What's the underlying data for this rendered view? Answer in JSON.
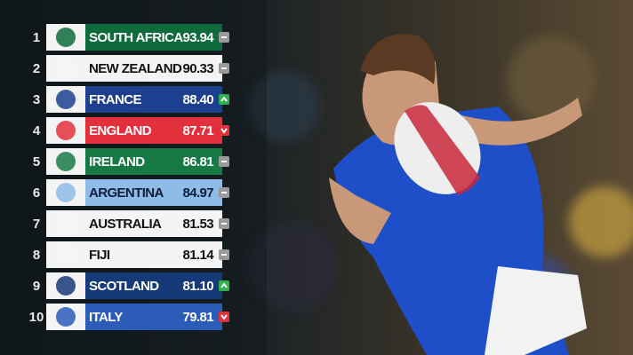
{
  "rankings": {
    "rows": [
      {
        "rank": "1",
        "team": "SOUTH AFRICA",
        "points": "93.94",
        "movement": "same",
        "color": "#0f6b3c",
        "text_color": "#ffffff"
      },
      {
        "rank": "2",
        "team": "NEW ZEALAND",
        "points": "90.33",
        "movement": "same",
        "color": "#f4f4f4",
        "text_color": "#111111"
      },
      {
        "rank": "3",
        "team": "FRANCE",
        "points": "88.40",
        "movement": "up",
        "color": "#1c3f8f",
        "text_color": "#ffffff"
      },
      {
        "rank": "4",
        "team": "ENGLAND",
        "points": "87.71",
        "movement": "down",
        "color": "#e2313c",
        "text_color": "#ffffff"
      },
      {
        "rank": "5",
        "team": "IRELAND",
        "points": "86.81",
        "movement": "same",
        "color": "#177a45",
        "text_color": "#ffffff"
      },
      {
        "rank": "6",
        "team": "ARGENTINA",
        "points": "84.97",
        "movement": "same",
        "color": "#8fbbe8",
        "text_color": "#0e1e3a"
      },
      {
        "rank": "7",
        "team": "AUSTRALIA",
        "points": "81.53",
        "movement": "same",
        "color": "#f4f4f4",
        "text_color": "#111111"
      },
      {
        "rank": "8",
        "team": "FIJI",
        "points": "81.14",
        "movement": "same",
        "color": "#f4f4f4",
        "text_color": "#111111"
      },
      {
        "rank": "9",
        "team": "SCOTLAND",
        "points": "81.10",
        "movement": "up",
        "color": "#163a78",
        "text_color": "#ffffff"
      },
      {
        "rank": "10",
        "team": "ITALY",
        "points": "79.81",
        "movement": "down",
        "color": "#2a5cb8",
        "text_color": "#ffffff"
      }
    ]
  }
}
